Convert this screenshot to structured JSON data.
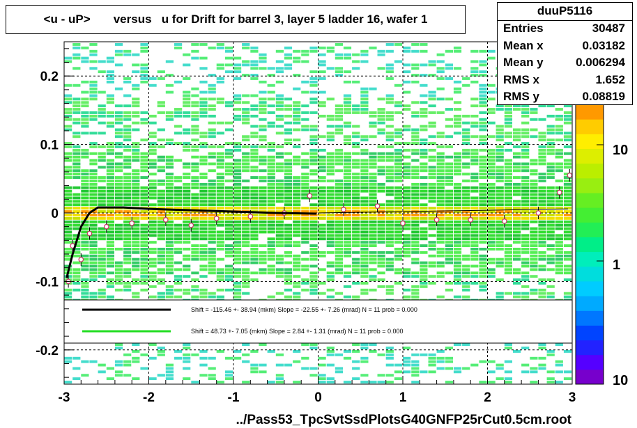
{
  "title": "<u - uP>       versus   u for Drift for barrel 3, layer 5 ladder 16, wafer 1",
  "stats": {
    "name": "duuP5116",
    "rows": [
      {
        "key": "Entries",
        "value": "30487"
      },
      {
        "key": "Mean x",
        "value": "0.03182"
      },
      {
        "key": "Mean y",
        "value": "0.006294"
      },
      {
        "key": "RMS x",
        "value": "1.652"
      },
      {
        "key": "RMS y",
        "value": "0.08819"
      }
    ]
  },
  "xlabel": "../Pass53_TpcSvtSsdPlotsG40GNFP25rCut0.5cm.root",
  "legend": [
    {
      "color": "#000000",
      "text": "Shift =  -115.46 +- 38.94 (mkm) Slope =   -22.55 +- 7.26 (mrad)  N = 11 prob = 0.000"
    },
    {
      "color": "#22dd22",
      "text": "Shift =    48.73 +- 7.05 (mkm) Slope =     2.84 +- 1.31 (mrad)  N = 11 prob = 0.000"
    }
  ],
  "chart_data": {
    "type": "heatmap",
    "xlim": [
      -3,
      3
    ],
    "ylim": [
      -0.25,
      0.25
    ],
    "xticks": [
      "-3",
      "-2",
      "-1",
      "0",
      "1",
      "2",
      "3"
    ],
    "yticks": [
      "0.2",
      "0.1",
      "0",
      "-0.1",
      "-0.2"
    ],
    "colorbar": {
      "scale": "log",
      "labels": [
        "10",
        "1",
        "10"
      ]
    },
    "grid": true,
    "mean_profile": [
      {
        "x": -2.95,
        "y": -0.1
      },
      {
        "x": -2.9,
        "y": -0.048
      },
      {
        "x": -2.8,
        "y": -0.068
      },
      {
        "x": -2.7,
        "y": -0.03
      },
      {
        "x": -2.5,
        "y": -0.02
      },
      {
        "x": -2.2,
        "y": -0.015
      },
      {
        "x": -1.8,
        "y": -0.01
      },
      {
        "x": -1.5,
        "y": -0.018
      },
      {
        "x": -1.2,
        "y": -0.008
      },
      {
        "x": -0.8,
        "y": -0.005
      },
      {
        "x": -0.4,
        "y": 0.0
      },
      {
        "x": -0.1,
        "y": 0.025
      },
      {
        "x": 0.3,
        "y": 0.005
      },
      {
        "x": 0.7,
        "y": 0.01
      },
      {
        "x": 1.0,
        "y": -0.015
      },
      {
        "x": 1.4,
        "y": -0.01
      },
      {
        "x": 1.8,
        "y": -0.01
      },
      {
        "x": 2.2,
        "y": -0.012
      },
      {
        "x": 2.6,
        "y": 0.0
      },
      {
        "x": 2.85,
        "y": 0.03
      },
      {
        "x": 2.97,
        "y": 0.055
      }
    ],
    "fit_black": [
      {
        "x": -2.97,
        "y": -0.095
      },
      {
        "x": -2.9,
        "y": -0.06
      },
      {
        "x": -2.8,
        "y": -0.02
      },
      {
        "x": -2.7,
        "y": 0.0
      },
      {
        "x": -2.6,
        "y": 0.008
      },
      {
        "x": -2.3,
        "y": 0.008
      },
      {
        "x": -2.0,
        "y": 0.006
      },
      {
        "x": -1.5,
        "y": 0.004
      },
      {
        "x": -1.0,
        "y": 0.002
      },
      {
        "x": -0.5,
        "y": 0.0
      },
      {
        "x": -0.02,
        "y": -0.001
      }
    ],
    "fit_green": [
      {
        "x": 0.0,
        "y": 0.0
      },
      {
        "x": 1.0,
        "y": 0.002
      },
      {
        "x": 2.0,
        "y": 0.004
      },
      {
        "x": 2.95,
        "y": 0.006
      }
    ]
  }
}
